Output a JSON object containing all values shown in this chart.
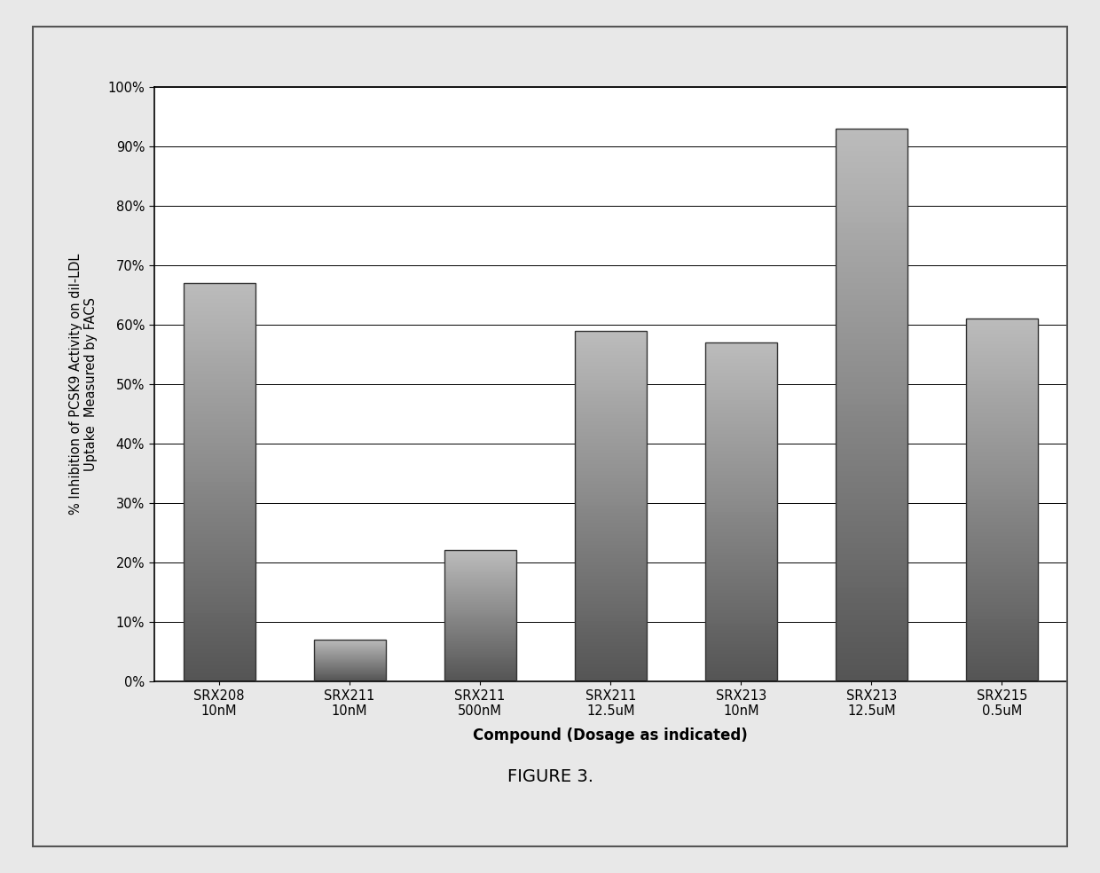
{
  "categories": [
    "SRX208\n10nM",
    "SRX211\n10nM",
    "SRX211\n500nM",
    "SRX211\n12.5uM",
    "SRX213\n10nM",
    "SRX213\n12.5uM",
    "SRX215\n0.5uM"
  ],
  "values": [
    0.67,
    0.07,
    0.22,
    0.59,
    0.57,
    0.93,
    0.61
  ],
  "ylabel_line1": "% Inhibition of PCSK9 Activity on dil-LDL",
  "ylabel_line2": "Uptake  Measured by FACS",
  "xlabel": "Compound (Dosage as indicated)",
  "figure_label": "FIGURE 3.",
  "ylim": [
    0,
    1.0
  ],
  "yticks": [
    0.0,
    0.1,
    0.2,
    0.3,
    0.4,
    0.5,
    0.6,
    0.7,
    0.8,
    0.9,
    1.0
  ],
  "bar_color_dark": "#555555",
  "bar_color_light": "#bbbbbb",
  "background_color": "#e8e8e8",
  "plot_background": "#ffffff",
  "border_color": "#000000",
  "bar_width": 0.55,
  "n_gradient_steps": 100
}
